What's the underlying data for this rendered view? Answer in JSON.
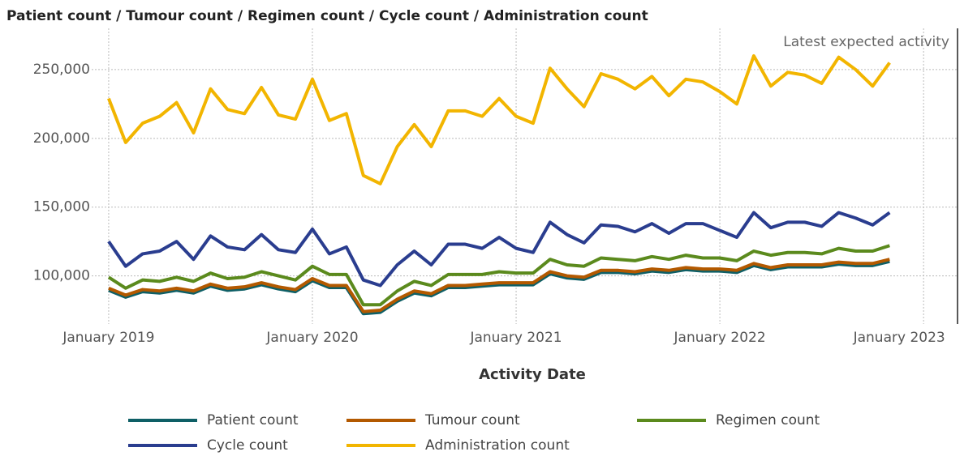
{
  "chart_data": {
    "type": "line",
    "title": "Patient count / Tumour count / Regimen count / Cycle count / Administration count",
    "x_label": "Activity Date",
    "x": [
      "2019-01",
      "2019-02",
      "2019-03",
      "2019-04",
      "2019-05",
      "2019-06",
      "2019-07",
      "2019-08",
      "2019-09",
      "2019-10",
      "2019-11",
      "2019-12",
      "2020-01",
      "2020-02",
      "2020-03",
      "2020-04",
      "2020-05",
      "2020-06",
      "2020-07",
      "2020-08",
      "2020-09",
      "2020-10",
      "2020-11",
      "2020-12",
      "2021-01",
      "2021-02",
      "2021-03",
      "2021-04",
      "2021-05",
      "2021-06",
      "2021-07",
      "2021-08",
      "2021-09",
      "2021-10",
      "2021-11",
      "2021-12",
      "2022-01",
      "2022-02",
      "2022-03",
      "2022-04",
      "2022-05",
      "2022-06",
      "2022-07",
      "2022-08",
      "2022-09",
      "2022-10",
      "2022-11"
    ],
    "xlim": [
      "2018-12",
      "2023-03"
    ],
    "xticks": [
      {
        "value": "2019-01",
        "label": "January 2019"
      },
      {
        "value": "2020-01",
        "label": "January 2020"
      },
      {
        "value": "2021-01",
        "label": "January 2021"
      },
      {
        "value": "2022-01",
        "label": "January 2022"
      },
      {
        "value": "2023-01",
        "label": "January 2023"
      }
    ],
    "ylim": [
      65000,
      280000
    ],
    "yticks": [
      {
        "value": 100000,
        "label": "100,000"
      },
      {
        "value": 150000,
        "label": "150,000"
      },
      {
        "value": 200000,
        "label": "200,000"
      },
      {
        "value": 250000,
        "label": "250,000"
      }
    ],
    "grid": true,
    "legend": "bottom",
    "annotations": [
      {
        "x": "2023-03",
        "text": "Latest expected activity"
      }
    ],
    "series": [
      {
        "name": "Patient count",
        "color": "#0e5f66",
        "values": [
          89500,
          84500,
          88500,
          87500,
          89500,
          87500,
          92500,
          89500,
          90500,
          93500,
          90500,
          88500,
          96500,
          91500,
          91500,
          72500,
          73500,
          81500,
          87500,
          85500,
          91500,
          91500,
          92500,
          93500,
          93500,
          93500,
          101500,
          98500,
          97500,
          102500,
          102500,
          101500,
          103500,
          102500,
          104500,
          103500,
          103500,
          102500,
          107500,
          104500,
          106500,
          106500,
          106500,
          108500,
          107500,
          107500,
          110500
        ]
      },
      {
        "name": "Tumour count",
        "color": "#b35900",
        "values": [
          91000,
          86000,
          90000,
          89000,
          91000,
          89000,
          94000,
          91000,
          92000,
          95000,
          92000,
          90000,
          98000,
          93000,
          93000,
          74000,
          75000,
          83000,
          89000,
          87000,
          93000,
          93000,
          94000,
          95000,
          95000,
          95000,
          103000,
          100000,
          99000,
          104000,
          104000,
          103000,
          105000,
          104000,
          106000,
          105000,
          105000,
          104000,
          109000,
          106000,
          108000,
          108000,
          108000,
          110000,
          109000,
          109000,
          112000
        ]
      },
      {
        "name": "Regimen count",
        "color": "#5b8a1d",
        "values": [
          99000,
          91000,
          97000,
          96000,
          99000,
          96000,
          102000,
          98000,
          99000,
          103000,
          100000,
          97000,
          107000,
          101000,
          101000,
          79000,
          79000,
          89000,
          96000,
          93000,
          101000,
          101000,
          101000,
          103000,
          102000,
          102000,
          112000,
          108000,
          107000,
          113000,
          112000,
          111000,
          114000,
          112000,
          115000,
          113000,
          113000,
          111000,
          118000,
          115000,
          117000,
          117000,
          116000,
          120000,
          118000,
          118000,
          122000
        ]
      },
      {
        "name": "Cycle count",
        "color": "#2a3d8f",
        "values": [
          125000,
          107000,
          116000,
          118000,
          125000,
          112000,
          129000,
          121000,
          119000,
          130000,
          119000,
          117000,
          134000,
          116000,
          121000,
          97000,
          93000,
          108000,
          118000,
          108000,
          123000,
          123000,
          120000,
          128000,
          120000,
          117000,
          139000,
          130000,
          124000,
          137000,
          136000,
          132000,
          138000,
          131000,
          138000,
          138000,
          133000,
          128000,
          146000,
          135000,
          139000,
          139000,
          136000,
          146000,
          142000,
          137000,
          146000
        ]
      },
      {
        "name": "Administration count",
        "color": "#f2b500",
        "values": [
          229000,
          197000,
          211000,
          216000,
          226000,
          204000,
          236000,
          221000,
          218000,
          237000,
          217000,
          214000,
          243000,
          213000,
          218000,
          173000,
          167000,
          194000,
          210000,
          194000,
          220000,
          220000,
          216000,
          229000,
          216000,
          211000,
          251000,
          236000,
          223000,
          247000,
          243000,
          236000,
          245000,
          231000,
          243000,
          241000,
          234000,
          225000,
          260000,
          238000,
          248000,
          246000,
          240000,
          259000,
          250000,
          238000,
          255000
        ]
      }
    ]
  }
}
